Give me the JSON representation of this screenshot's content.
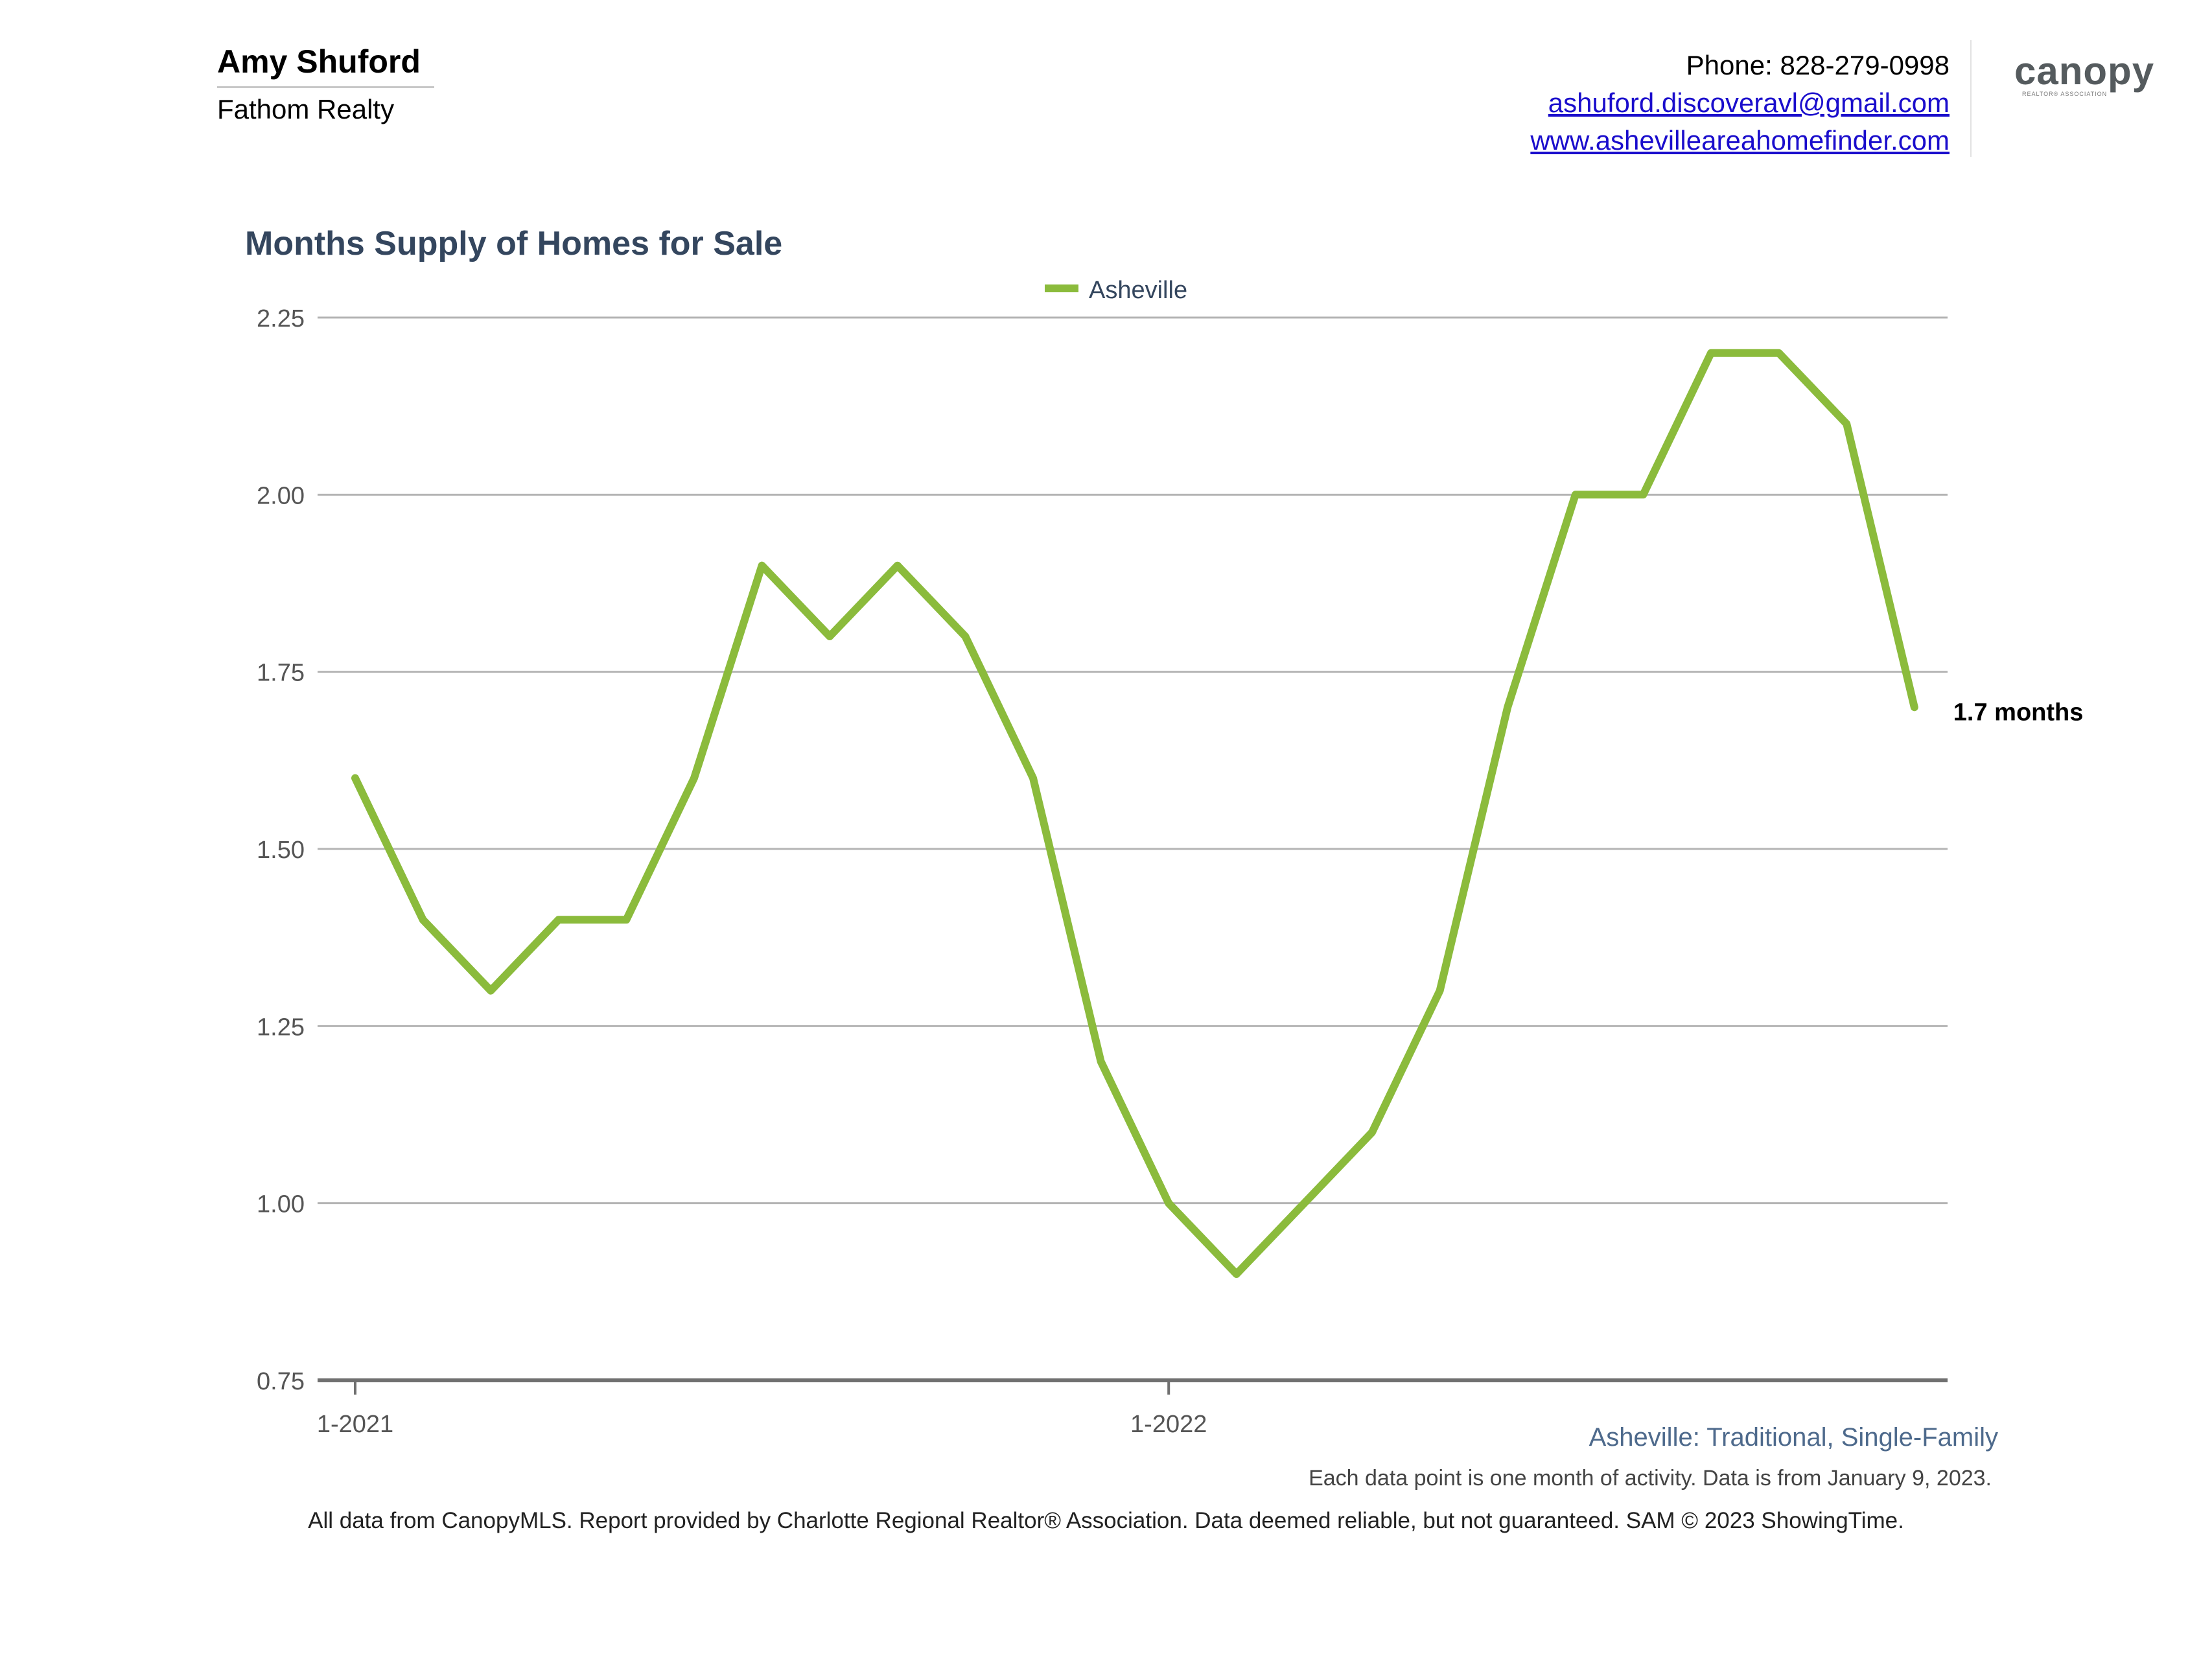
{
  "agent": {
    "name": "Amy Shuford",
    "company": "Fathom Realty"
  },
  "contact": {
    "phone": "Phone: 828-279-0998",
    "email": "ashuford.discoveravl@gmail.com",
    "website": "www.ashevilleareahomefinder.com"
  },
  "logo": {
    "word": "canopy",
    "sub": "REALTOR® ASSOCIATION"
  },
  "colors": {
    "series": "#8bbb3c",
    "title": "#34465e",
    "grid": "#b4b4b4",
    "axis": "#707070",
    "tick_text": "#555555",
    "link": "#1a0dcc"
  },
  "chart_data": {
    "type": "line",
    "title": "Months Supply of Homes for Sale",
    "legend": {
      "position": "top-center"
    },
    "x": [
      "1-2021",
      "2-2021",
      "3-2021",
      "4-2021",
      "5-2021",
      "6-2021",
      "7-2021",
      "8-2021",
      "9-2021",
      "10-2021",
      "11-2021",
      "12-2021",
      "1-2022",
      "2-2022",
      "3-2022",
      "4-2022",
      "5-2022",
      "6-2022",
      "7-2022",
      "8-2022",
      "9-2022",
      "10-2022",
      "11-2022",
      "12-2022"
    ],
    "x_tick_labels": [
      {
        "label": "1-2021",
        "index": 0
      },
      {
        "label": "1-2022",
        "index": 12
      }
    ],
    "series": [
      {
        "name": "Asheville",
        "values": [
          1.6,
          1.4,
          1.3,
          1.4,
          1.4,
          1.6,
          1.9,
          1.8,
          1.9,
          1.8,
          1.6,
          1.2,
          1.0,
          0.9,
          1.0,
          1.1,
          1.3,
          1.7,
          2.0,
          2.0,
          2.2,
          2.2,
          2.1,
          1.7
        ]
      }
    ],
    "ylim": [
      0.75,
      2.25
    ],
    "yticks": [
      "0.75",
      "1.00",
      "1.25",
      "1.50",
      "1.75",
      "2.00",
      "2.25"
    ],
    "end_label": "1.7 months",
    "grid": true
  },
  "footnotes": {
    "series_description": "Asheville: Traditional, Single-Family",
    "data_note": "Each data point is one month of activity. Data is from January 9, 2023.",
    "disclaimer": "All data from CanopyMLS. Report provided by Charlotte Regional Realtor® Association. Data deemed reliable, but not guaranteed. SAM © 2023 ShowingTime."
  }
}
